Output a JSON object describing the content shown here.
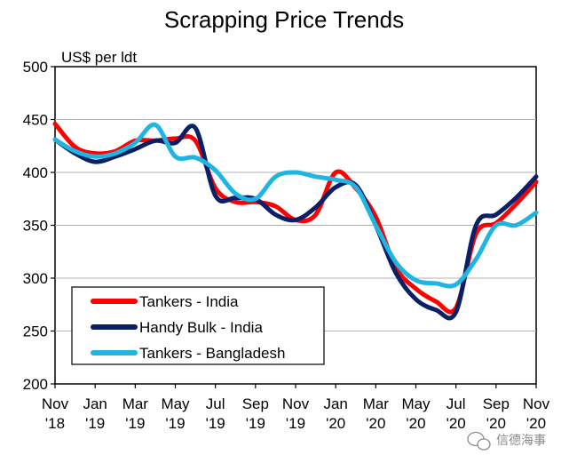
{
  "chart_data": {
    "type": "line",
    "title": "Scrapping Price Trends",
    "ylabel": "US$ per ldt",
    "xlabel": "",
    "ylim": [
      200,
      500
    ],
    "yticks": [
      200,
      250,
      300,
      350,
      400,
      450,
      500
    ],
    "grid": "horizontal",
    "legend_position": "bottom-left",
    "x_tick_labels": [
      {
        "month": "Nov",
        "year": "'18",
        "index": 0
      },
      {
        "month": "Jan",
        "year": "'19",
        "index": 2
      },
      {
        "month": "Mar",
        "year": "'19",
        "index": 4
      },
      {
        "month": "May",
        "year": "'19",
        "index": 6
      },
      {
        "month": "Jul",
        "year": "'19",
        "index": 8
      },
      {
        "month": "Sep",
        "year": "'19",
        "index": 10
      },
      {
        "month": "Nov",
        "year": "'19",
        "index": 12
      },
      {
        "month": "Jan",
        "year": "'20",
        "index": 14
      },
      {
        "month": "Mar",
        "year": "'20",
        "index": 16
      },
      {
        "month": "May",
        "year": "'20",
        "index": 18
      },
      {
        "month": "Jul",
        "year": "'20",
        "index": 20
      },
      {
        "month": "Sep",
        "year": "'20",
        "index": 22
      },
      {
        "month": "Nov",
        "year": "'20",
        "index": 24
      }
    ],
    "x": [
      "Nov 18",
      "Dec 18",
      "Jan 19",
      "Feb 19",
      "Mar 19",
      "Apr 19",
      "May 19",
      "Jun 19",
      "Jul 19",
      "Aug 19",
      "Sep 19",
      "Oct 19",
      "Nov 19",
      "Dec 19",
      "Jan 20",
      "Feb 20",
      "Mar 20",
      "Apr 20",
      "May 20",
      "Jun 20",
      "Jul 20",
      "Aug 20",
      "Sep 20",
      "Oct 20",
      "Nov 20"
    ],
    "series": [
      {
        "name": "Tankers - India",
        "color": "#ff0000",
        "values": [
          446,
          424,
          418,
          420,
          430,
          430,
          432,
          430,
          385,
          372,
          372,
          368,
          355,
          360,
          400,
          385,
          358,
          310,
          290,
          278,
          272,
          342,
          352,
          370,
          391
        ]
      },
      {
        "name": "Handy Bulk - India",
        "color": "#0a1f66",
        "values": [
          431,
          418,
          410,
          415,
          422,
          430,
          428,
          442,
          378,
          376,
          375,
          360,
          355,
          367,
          386,
          388,
          350,
          305,
          280,
          270,
          268,
          350,
          360,
          376,
          396
        ]
      },
      {
        "name": "Tankers - Bangladesh",
        "color": "#1fb5e0",
        "values": [
          431,
          420,
          415,
          418,
          428,
          445,
          415,
          414,
          402,
          380,
          375,
          396,
          400,
          396,
          393,
          386,
          350,
          315,
          298,
          295,
          294,
          318,
          350,
          350,
          362
        ]
      }
    ]
  },
  "watermark": {
    "text": "信德海事",
    "icon": "wechat-icon"
  }
}
